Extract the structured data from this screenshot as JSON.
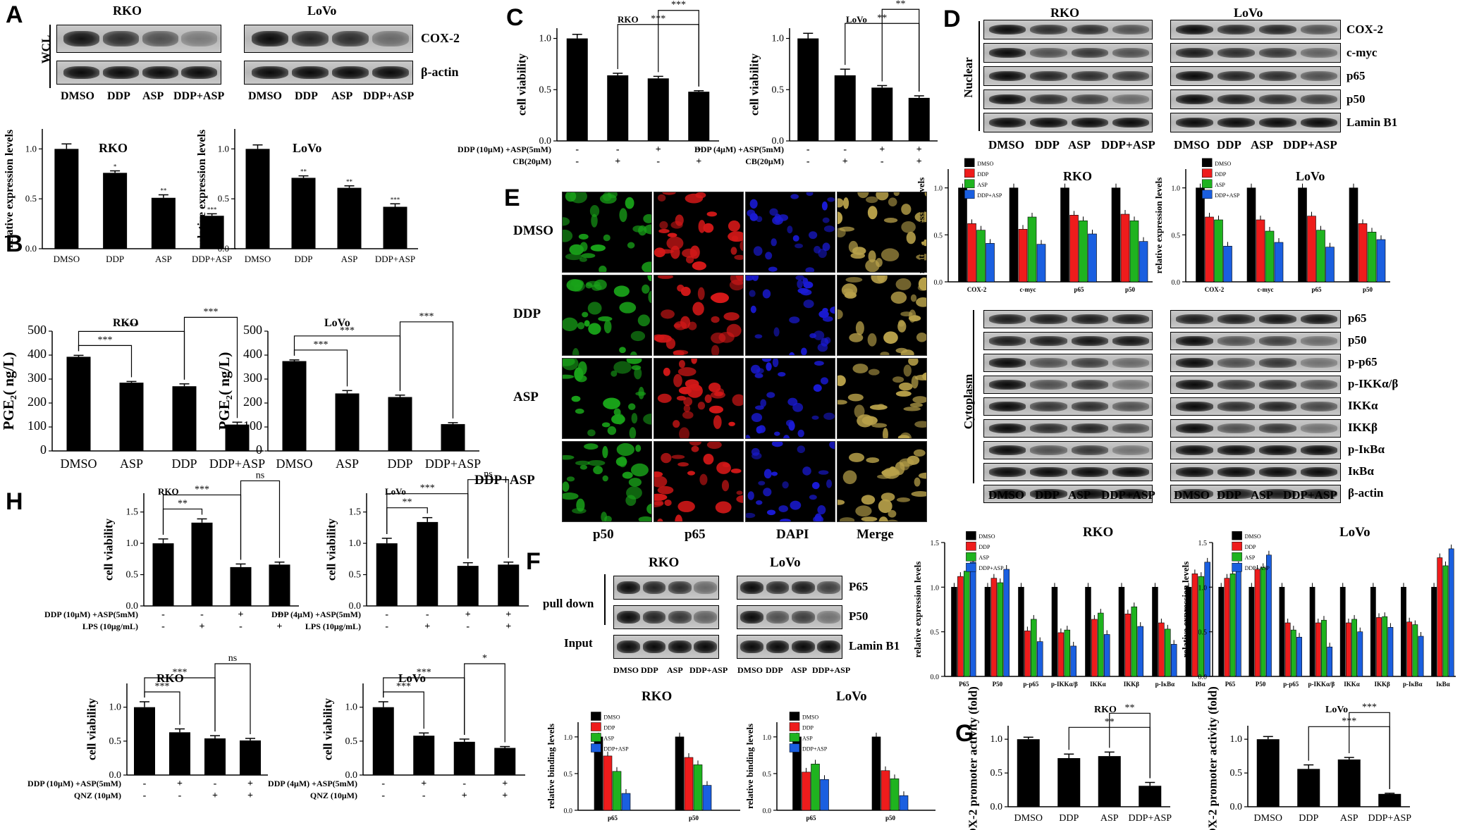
{
  "panels": {
    "A": "A",
    "B": "B",
    "C": "C",
    "D": "D",
    "E": "E",
    "F": "F",
    "G": "G",
    "H": "H"
  },
  "A": {
    "rko": "RKO",
    "lovo": "LoVo",
    "side": "WCL",
    "rows": [
      "COX-2",
      "β-actin"
    ],
    "lanes": [
      "DMSO",
      "DDP",
      "ASP",
      "DDP+ASP"
    ]
  },
  "D": {
    "rko": "RKO",
    "lovo": "LoVo",
    "nuclear": "Nuclear",
    "cytoplasm": "Cytoplasm",
    "nuc_rows": [
      "COX-2",
      "c-myc",
      "p65",
      "p50",
      "Lamin B1"
    ],
    "cyto_rows": [
      "p65",
      "p50",
      "p-p65",
      "p-IKKα/β",
      "IKKα",
      "IKKβ",
      "p-IκBα",
      "IκBα",
      "β-actin"
    ],
    "lanes": [
      "DMSO",
      "DDP",
      "ASP",
      "DDP+ASP"
    ]
  },
  "E": {
    "rows": [
      "DMSO",
      "DDP",
      "ASP",
      "DDP+ASP"
    ],
    "cols": [
      "p50",
      "p65",
      "DAPI",
      "Merge"
    ],
    "colors": {
      "p50": "#19a319",
      "p65": "#d41818",
      "DAPI": "#1a1ad4",
      "Merge": "#b8a14a"
    }
  },
  "F": {
    "rko": "RKO",
    "lovo": "LoVo",
    "pulldown": "pull down",
    "input": "Input",
    "rows": [
      "P65",
      "P50",
      "Lamin B1"
    ],
    "lanes": [
      "DMSO",
      "DDP",
      "ASP",
      "DDP+ASP"
    ]
  },
  "series_colors": {
    "DMSO": "#000000",
    "DDP": "#ee1c1c",
    "ASP": "#1fb31f",
    "DDP+ASP": "#1a5fe0"
  },
  "chart_data": [
    {
      "id": "A-rko",
      "type": "bar",
      "title": "RKO",
      "ylabel": "relative expression levels",
      "categories": [
        "DMSO",
        "DDP",
        "ASP",
        "DDP+ASP"
      ],
      "values": [
        1.0,
        0.76,
        0.51,
        0.33
      ],
      "errors": [
        0.05,
        0.02,
        0.03,
        0.02
      ],
      "sig": [
        "",
        "*",
        "**",
        "***"
      ],
      "ylim": [
        0,
        1.2
      ],
      "yticks": [
        "0.0",
        "0.5",
        "1.0"
      ]
    },
    {
      "id": "A-lovo",
      "type": "bar",
      "title": "LoVo",
      "ylabel": "relative expression levels",
      "categories": [
        "DMSO",
        "DDP",
        "ASP",
        "DDP+ASP"
      ],
      "values": [
        1.0,
        0.71,
        0.61,
        0.42
      ],
      "errors": [
        0.04,
        0.02,
        0.02,
        0.03
      ],
      "sig": [
        "",
        "**",
        "**",
        "***"
      ],
      "ylim": [
        0,
        1.2
      ],
      "yticks": [
        "0.0",
        "0.5",
        "1.0"
      ]
    },
    {
      "id": "B-rko",
      "type": "bar",
      "title": "RKO",
      "ylabel": "PGE₂( ng/L)",
      "categories": [
        "DMSO",
        "ASP",
        "DDP",
        "DDP+ASP"
      ],
      "values": [
        393,
        285,
        270,
        110
      ],
      "errors": [
        6,
        5,
        10,
        10
      ],
      "ylim": [
        0,
        500
      ],
      "yticks": [
        "0",
        "100",
        "200",
        "300",
        "400",
        "500"
      ],
      "brackets": [
        {
          "a": 0,
          "b": 1,
          "label": "***"
        },
        {
          "a": 0,
          "b": 2,
          "label": "***"
        },
        {
          "a": 2,
          "b": 3,
          "label": "***"
        }
      ]
    },
    {
      "id": "B-lovo",
      "type": "bar",
      "title": "LoVo",
      "ylabel": "PGE₂( ng/L)",
      "categories": [
        "DMSO",
        "ASP",
        "DDP",
        "DDP+ASP"
      ],
      "values": [
        375,
        240,
        225,
        112
      ],
      "errors": [
        5,
        12,
        8,
        6
      ],
      "ylim": [
        0,
        500
      ],
      "yticks": [
        "0",
        "100",
        "200",
        "300",
        "400",
        "500"
      ],
      "brackets": [
        {
          "a": 0,
          "b": 1,
          "label": "***"
        },
        {
          "a": 0,
          "b": 2,
          "label": "***"
        },
        {
          "a": 2,
          "b": 3,
          "label": "***"
        }
      ]
    },
    {
      "id": "C-rko",
      "type": "bar",
      "title": "RKO",
      "ylabel": "cell viability",
      "values": [
        1.0,
        0.64,
        0.61,
        0.48
      ],
      "errors": [
        0.04,
        0.02,
        0.02,
        0.01
      ],
      "ylim": [
        0,
        1.1
      ],
      "yticks": [
        "0.0",
        "0.5",
        "1.0"
      ],
      "treat": [
        {
          "label": "DDP (10μM) +ASP(5mM)",
          "marks": [
            "-",
            "-",
            "+",
            "+"
          ]
        },
        {
          "label": "CB(20μM)",
          "marks": [
            "-",
            "+",
            "-",
            "+"
          ]
        }
      ],
      "brackets": [
        {
          "a": 1,
          "b": 3,
          "label": "***"
        },
        {
          "a": 2,
          "b": 3,
          "label": "***"
        }
      ]
    },
    {
      "id": "C-lovo",
      "type": "bar",
      "title": "LoVo",
      "ylabel": "cell viability",
      "values": [
        1.0,
        0.64,
        0.52,
        0.42
      ],
      "errors": [
        0.05,
        0.06,
        0.02,
        0.02
      ],
      "ylim": [
        0,
        1.1
      ],
      "yticks": [
        "0.0",
        "0.5",
        "1.0"
      ],
      "treat": [
        {
          "label": "DDP (4μM) +ASP(5mM)",
          "marks": [
            "-",
            "-",
            "+",
            "+"
          ]
        },
        {
          "label": "CB(20μM)",
          "marks": [
            "-",
            "+",
            "-",
            "+"
          ]
        }
      ],
      "brackets": [
        {
          "a": 1,
          "b": 3,
          "label": "**"
        },
        {
          "a": 2,
          "b": 3,
          "label": "**"
        }
      ]
    },
    {
      "id": "D-nuc-rko",
      "type": "bar",
      "title": "RKO",
      "ylabel": "relative expression levels",
      "categories": [
        "COX-2",
        "c-myc",
        "p65",
        "p50"
      ],
      "ylim": [
        0,
        1.2
      ],
      "yticks": [
        "0.0",
        "0.5",
        "1.0"
      ],
      "series": [
        {
          "name": "DMSO",
          "values": [
            1.0,
            1.0,
            1.0,
            1.0
          ]
        },
        {
          "name": "DDP",
          "values": [
            0.62,
            0.56,
            0.71,
            0.72
          ]
        },
        {
          "name": "ASP",
          "values": [
            0.55,
            0.69,
            0.65,
            0.65
          ]
        },
        {
          "name": "DDP+ASP",
          "values": [
            0.41,
            0.4,
            0.51,
            0.43
          ]
        }
      ]
    },
    {
      "id": "D-nuc-lovo",
      "type": "bar",
      "title": "LoVo",
      "ylabel": "relative expression levels",
      "categories": [
        "COX-2",
        "c-myc",
        "p65",
        "p50"
      ],
      "ylim": [
        0,
        1.2
      ],
      "yticks": [
        "0.0",
        "0.5",
        "1.0"
      ],
      "series": [
        {
          "name": "DMSO",
          "values": [
            1.0,
            1.0,
            1.0,
            1.0
          ]
        },
        {
          "name": "DDP",
          "values": [
            0.69,
            0.66,
            0.7,
            0.62
          ]
        },
        {
          "name": "ASP",
          "values": [
            0.66,
            0.54,
            0.55,
            0.53
          ]
        },
        {
          "name": "DDP+ASP",
          "values": [
            0.38,
            0.42,
            0.37,
            0.45
          ]
        }
      ]
    },
    {
      "id": "D-cyto-rko",
      "type": "bar",
      "title": "RKO",
      "ylabel": "relative expression levels",
      "categories": [
        "P65",
        "P50",
        "p-p65",
        "p-IKKα/β",
        "IKKα",
        "IKKβ",
        "p-IκBα",
        "IκBα"
      ],
      "ylim": [
        0,
        1.5
      ],
      "yticks": [
        "0.0",
        "0.5",
        "1.0",
        "1.5"
      ],
      "series": [
        {
          "name": "DMSO",
          "values": [
            1.0,
            1.0,
            1.0,
            1.0,
            1.0,
            1.0,
            1.0,
            1.0
          ]
        },
        {
          "name": "DDP",
          "values": [
            1.12,
            1.1,
            0.51,
            0.49,
            0.64,
            0.7,
            0.6,
            1.15
          ]
        },
        {
          "name": "ASP",
          "values": [
            1.18,
            1.05,
            0.64,
            0.52,
            0.71,
            0.78,
            0.53,
            1.12
          ]
        },
        {
          "name": "DDP+ASP",
          "values": [
            1.28,
            1.2,
            0.39,
            0.34,
            0.47,
            0.56,
            0.36,
            1.28
          ]
        }
      ]
    },
    {
      "id": "D-cyto-lovo",
      "type": "bar",
      "title": "LoVo",
      "ylabel": "relative expression levels",
      "categories": [
        "P65",
        "P50",
        "p-p65",
        "p-IKKα/β",
        "IKKα",
        "IKKβ",
        "p-IκBα",
        "IκBα"
      ],
      "ylim": [
        0,
        1.5
      ],
      "yticks": [
        "0.0",
        "0.5",
        "1.0",
        "1.5"
      ],
      "series": [
        {
          "name": "DMSO",
          "values": [
            1.0,
            1.0,
            1.0,
            1.0,
            1.0,
            1.0,
            1.0,
            1.0
          ]
        },
        {
          "name": "DDP",
          "values": [
            1.1,
            1.2,
            0.6,
            0.6,
            0.6,
            0.66,
            0.61,
            1.33
          ]
        },
        {
          "name": "ASP",
          "values": [
            1.15,
            1.22,
            0.52,
            0.63,
            0.64,
            0.67,
            0.58,
            1.24
          ]
        },
        {
          "name": "DDP+ASP",
          "values": [
            1.24,
            1.36,
            0.44,
            0.33,
            0.5,
            0.55,
            0.45,
            1.43
          ]
        }
      ]
    },
    {
      "id": "F-rko",
      "type": "bar",
      "title": "RKO",
      "ylabel": "relative binding levels",
      "categories": [
        "p65",
        "p50"
      ],
      "ylim": [
        0,
        1.2
      ],
      "yticks": [
        "0.0",
        "0.5",
        "1.0"
      ],
      "series": [
        {
          "name": "DMSO",
          "values": [
            1.0,
            1.0
          ]
        },
        {
          "name": "DDP",
          "values": [
            0.74,
            0.72
          ]
        },
        {
          "name": "ASP",
          "values": [
            0.53,
            0.62
          ]
        },
        {
          "name": "DDP+ASP",
          "values": [
            0.23,
            0.34
          ]
        }
      ]
    },
    {
      "id": "F-lovo",
      "type": "bar",
      "title": "LoVo",
      "ylabel": "relative binding levels",
      "categories": [
        "p65",
        "p50"
      ],
      "ylim": [
        0,
        1.2
      ],
      "yticks": [
        "0.0",
        "0.5",
        "1.0"
      ],
      "series": [
        {
          "name": "DMSO",
          "values": [
            1.0,
            1.0
          ]
        },
        {
          "name": "DDP",
          "values": [
            0.52,
            0.54
          ]
        },
        {
          "name": "ASP",
          "values": [
            0.63,
            0.43
          ]
        },
        {
          "name": "DDP+ASP",
          "values": [
            0.42,
            0.2
          ]
        }
      ]
    },
    {
      "id": "G-rko",
      "type": "bar",
      "title": "RKO",
      "ylabel": "COX-2 promoter activity (fold)",
      "categories": [
        "DMSO",
        "DDP",
        "ASP",
        "DDP+ASP"
      ],
      "values": [
        1.0,
        0.72,
        0.75,
        0.31
      ],
      "errors": [
        0.03,
        0.06,
        0.06,
        0.05
      ],
      "ylim": [
        0,
        1.2
      ],
      "yticks": [
        "0.0",
        "0.5",
        "1.0"
      ],
      "brackets": [
        {
          "a": 1,
          "b": 3,
          "label": "**"
        },
        {
          "a": 2,
          "b": 3,
          "label": "**"
        }
      ]
    },
    {
      "id": "G-lovo",
      "type": "bar",
      "title": "LoVo",
      "ylabel": "COX-2 promoter activity (fold)",
      "categories": [
        "DMSO",
        "DDP",
        "ASP",
        "DDP+ASP"
      ],
      "values": [
        1.0,
        0.56,
        0.7,
        0.19
      ],
      "errors": [
        0.04,
        0.06,
        0.03,
        0.01
      ],
      "ylim": [
        0,
        1.2
      ],
      "yticks": [
        "0.0",
        "0.5",
        "1.0"
      ],
      "brackets": [
        {
          "a": 1,
          "b": 3,
          "label": "***"
        },
        {
          "a": 2,
          "b": 3,
          "label": "***"
        }
      ]
    },
    {
      "id": "H-rko-lps",
      "type": "bar",
      "title": "RKO",
      "ylabel": "cell viability",
      "values": [
        1.0,
        1.33,
        0.62,
        0.66
      ],
      "errors": [
        0.07,
        0.06,
        0.05,
        0.04
      ],
      "ylim": [
        0,
        1.8
      ],
      "yticks": [
        "0.0",
        "0.5",
        "1.0",
        "1.5"
      ],
      "treat": [
        {
          "label": "DDP (10μM) +ASP(5mM)",
          "marks": [
            "-",
            "-",
            "+",
            "+"
          ]
        },
        {
          "label": "LPS (10μg/mL)",
          "marks": [
            "-",
            "+",
            "-",
            "+"
          ]
        }
      ],
      "brackets": [
        {
          "a": 0,
          "b": 1,
          "label": "**"
        },
        {
          "a": 0,
          "b": 2,
          "label": "***"
        },
        {
          "a": 2,
          "b": 3,
          "label": "ns"
        }
      ]
    },
    {
      "id": "H-lovo-lps",
      "type": "bar",
      "title": "LoVo",
      "ylabel": "cell viability",
      "values": [
        1.0,
        1.34,
        0.64,
        0.66
      ],
      "errors": [
        0.08,
        0.07,
        0.05,
        0.04
      ],
      "ylim": [
        0,
        1.8
      ],
      "yticks": [
        "0.0",
        "0.5",
        "1.0",
        "1.5"
      ],
      "treat": [
        {
          "label": "DDP (4μM) +ASP(5mM)",
          "marks": [
            "-",
            "-",
            "+",
            "+"
          ]
        },
        {
          "label": "LPS (10μg/mL)",
          "marks": [
            "-",
            "+",
            "-",
            "+"
          ]
        }
      ],
      "brackets": [
        {
          "a": 0,
          "b": 1,
          "label": "**"
        },
        {
          "a": 0,
          "b": 2,
          "label": "***"
        },
        {
          "a": 2,
          "b": 3,
          "label": "ns"
        }
      ]
    },
    {
      "id": "H-rko-qnz",
      "type": "bar",
      "title": "RKO",
      "ylabel": "cell viability",
      "values": [
        1.0,
        0.63,
        0.54,
        0.51
      ],
      "errors": [
        0.08,
        0.05,
        0.04,
        0.03
      ],
      "ylim": [
        0,
        1.35
      ],
      "yticks": [
        "0.0",
        "0.5",
        "1.0"
      ],
      "treat": [
        {
          "label": "DDP (10μM) +ASP(5mM)",
          "marks": [
            "-",
            "+",
            "-",
            "+"
          ]
        },
        {
          "label": "QNZ (10μM)",
          "marks": [
            "-",
            "-",
            "+",
            "+"
          ]
        }
      ],
      "brackets": [
        {
          "a": 0,
          "b": 1,
          "label": "***"
        },
        {
          "a": 0,
          "b": 2,
          "label": "***"
        },
        {
          "a": 2,
          "b": 3,
          "label": "ns"
        }
      ]
    },
    {
      "id": "H-lovo-qnz",
      "type": "bar",
      "title": "LoVo",
      "ylabel": "cell viability",
      "values": [
        1.0,
        0.58,
        0.49,
        0.4
      ],
      "errors": [
        0.08,
        0.04,
        0.04,
        0.02
      ],
      "ylim": [
        0,
        1.35
      ],
      "yticks": [
        "0.0",
        "0.5",
        "1.0"
      ],
      "treat": [
        {
          "label": "DDP (4μM) +ASP(5mM)",
          "marks": [
            "-",
            "+",
            "-",
            "+"
          ]
        },
        {
          "label": "QNZ (10μM)",
          "marks": [
            "-",
            "-",
            "+",
            "+"
          ]
        }
      ],
      "brackets": [
        {
          "a": 0,
          "b": 1,
          "label": "***"
        },
        {
          "a": 0,
          "b": 2,
          "label": "***"
        },
        {
          "a": 2,
          "b": 3,
          "label": "*"
        }
      ]
    }
  ]
}
